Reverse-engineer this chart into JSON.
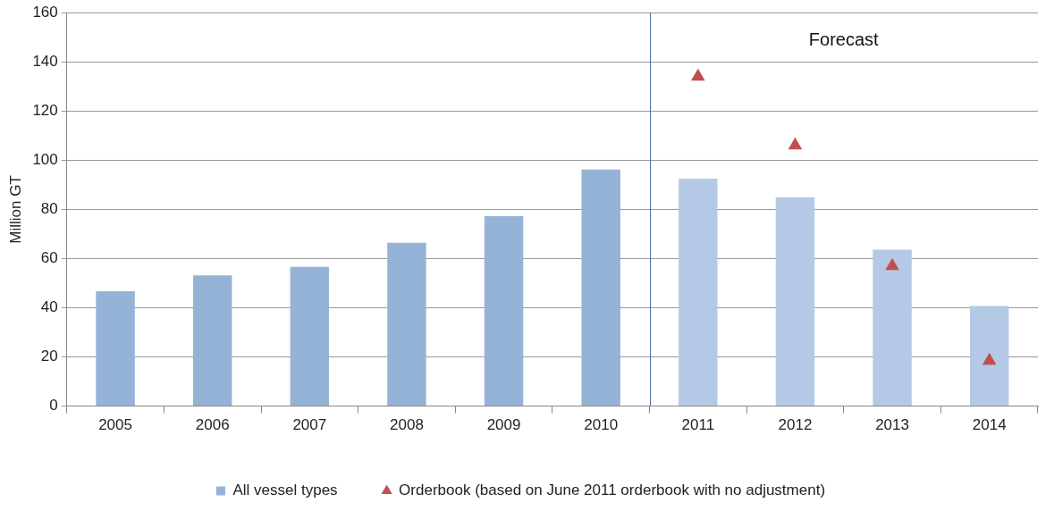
{
  "chart_data": {
    "type": "bar",
    "ylabel": "Million GT",
    "categories": [
      "2005",
      "2006",
      "2007",
      "2008",
      "2009",
      "2010",
      "2011",
      "2012",
      "2013",
      "2014"
    ],
    "series": [
      {
        "name": "All vessel types",
        "color": "#95b3d7",
        "colors": [
          "#95b3d7",
          "#95b3d7",
          "#95b3d7",
          "#95b3d7",
          "#95b3d7",
          "#95b3d7",
          "#b4c9e6",
          "#b4c9e6",
          "#b4c9e6",
          "#b4c9e6"
        ],
        "values": [
          46.7,
          53.2,
          56.6,
          66.4,
          77.2,
          96.2,
          92.5,
          85.0,
          63.6,
          40.7
        ]
      },
      {
        "name": "Orderbook (based on June 2011 orderbook with no adjustment)",
        "type": "scatter",
        "color": "#c0504d",
        "marker": "triangle",
        "values": [
          null,
          null,
          null,
          null,
          null,
          null,
          134,
          106,
          57,
          18.5
        ]
      }
    ],
    "ylim": [
      0,
      160
    ],
    "yticks": [
      0,
      20,
      40,
      60,
      80,
      100,
      120,
      140,
      160
    ],
    "grid": "y",
    "legend": "bottom",
    "ref_lines": [
      {
        "axis": "x",
        "value": "2011",
        "color": "#4f6fa0"
      }
    ],
    "annotations": [
      "Forecast"
    ]
  }
}
